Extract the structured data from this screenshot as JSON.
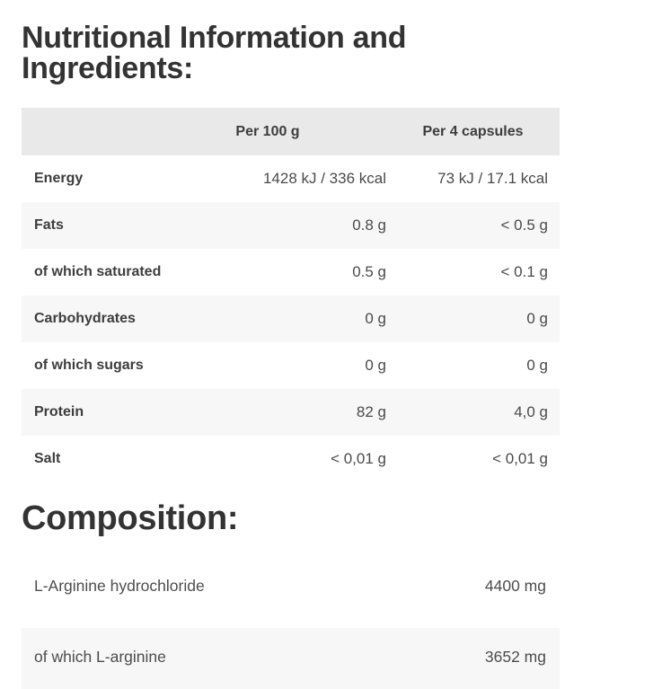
{
  "section": {
    "title": "Nutritional Information and Ingredients:"
  },
  "nutrition_table": {
    "header": {
      "col1": "",
      "col2": "Per 100 g",
      "col3": "Per 4 capsules"
    },
    "rows": [
      {
        "label": "Energy",
        "per_100g": "1428 kJ / 336 kcal",
        "per_4_capsules": "73 kJ / 17.1 kcal"
      },
      {
        "label": "Fats",
        "per_100g": "0.8 g",
        "per_4_capsules": "< 0.5 g"
      },
      {
        "label": "of which saturated",
        "per_100g": "0.5 g",
        "per_4_capsules": "< 0.1 g"
      },
      {
        "label": "Carbohydrates",
        "per_100g": "0 g",
        "per_4_capsules": "0 g"
      },
      {
        "label": "of which sugars",
        "per_100g": "0 g",
        "per_4_capsules": "0 g"
      },
      {
        "label": "Protein",
        "per_100g": "82 g",
        "per_4_capsules": "4,0 g"
      },
      {
        "label": "Salt",
        "per_100g": "< 0,01 g",
        "per_4_capsules": "< 0,01 g"
      }
    ]
  },
  "composition": {
    "title": "Composition:",
    "rows": [
      {
        "label": "L-Arginine hydrochloride",
        "amount": "4400 mg"
      },
      {
        "label": "of which L-arginine",
        "amount": "3652 mg"
      }
    ]
  },
  "colors": {
    "header_background": "#e9e9e9",
    "row_alt_background": "#f7f7f7",
    "heading_text": "#333333",
    "label_text": "#3d3d3d",
    "value_text": "#4a4a4a"
  }
}
